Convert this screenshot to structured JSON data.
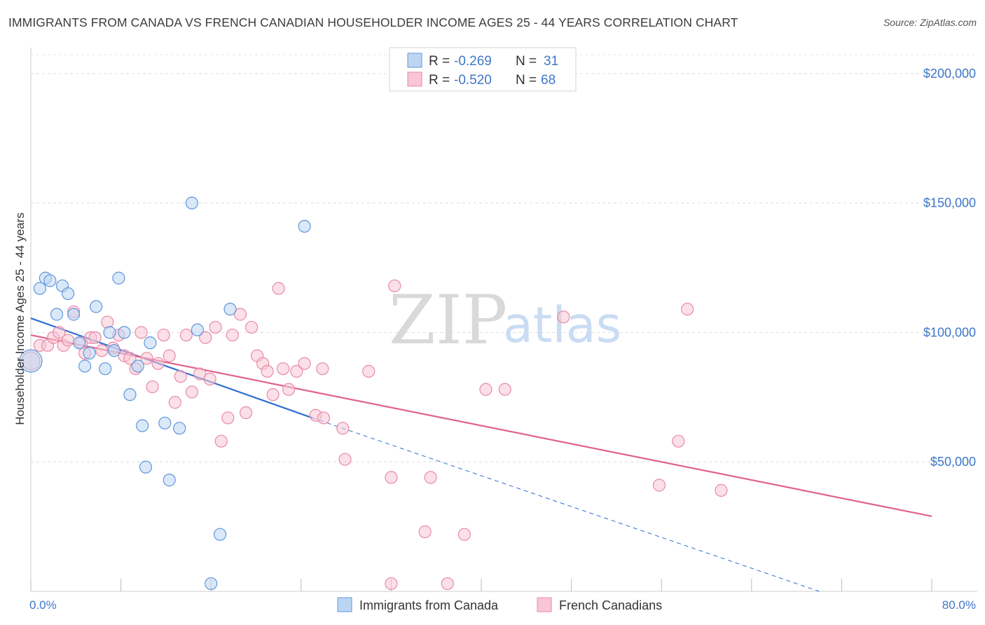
{
  "title": "IMMIGRANTS FROM CANADA VS FRENCH CANADIAN HOUSEHOLDER INCOME AGES 25 - 44 YEARS CORRELATION CHART",
  "source": "Source: ZipAtlas.com",
  "watermark": {
    "zip": "ZIP",
    "atlas": "atlas"
  },
  "legend": {
    "r_label": "R =",
    "n_label": "N =",
    "rows": [
      {
        "r": "-0.269",
        "n": "31",
        "color": "#a9c8ee"
      },
      {
        "r": "-0.520",
        "n": "68",
        "color": "#f5b6c9"
      }
    ]
  },
  "bottom_legend": [
    "Immigrants from Canada",
    "French Canadians"
  ],
  "chart_data": {
    "type": "scatter",
    "xlabel": "",
    "ylabel": "Householder Income Ages 25 - 44 years",
    "xlim": [
      0,
      80
    ],
    "ylim": [
      0,
      210000
    ],
    "x_tick_labels": [
      "0.0%",
      "80.0%"
    ],
    "y_ticks": [
      50000,
      100000,
      150000,
      200000
    ],
    "y_tick_labels": [
      "$50,000",
      "$100,000",
      "$150,000",
      "$200,000"
    ],
    "grid": true,
    "legend_position": "top-center",
    "series": [
      {
        "name": "Immigrants from Canada",
        "color": "#5f97dc",
        "fill": "#bcd5f3",
        "line_color": "#2f6fd0",
        "points": [
          [
            0.0,
            89000
          ],
          [
            0.8,
            117000
          ],
          [
            1.3,
            121000
          ],
          [
            1.7,
            120000
          ],
          [
            2.3,
            107000
          ],
          [
            2.8,
            118000
          ],
          [
            3.3,
            115000
          ],
          [
            3.8,
            107000
          ],
          [
            4.3,
            96000
          ],
          [
            4.8,
            87000
          ],
          [
            5.2,
            92000
          ],
          [
            5.8,
            110000
          ],
          [
            6.6,
            86000
          ],
          [
            7.0,
            100000
          ],
          [
            7.4,
            93000
          ],
          [
            7.8,
            121000
          ],
          [
            8.3,
            100000
          ],
          [
            8.8,
            76000
          ],
          [
            9.5,
            87000
          ],
          [
            9.9,
            64000
          ],
          [
            10.2,
            48000
          ],
          [
            10.6,
            96000
          ],
          [
            11.9,
            65000
          ],
          [
            12.3,
            43000
          ],
          [
            13.2,
            63000
          ],
          [
            14.3,
            150000
          ],
          [
            14.8,
            101000
          ],
          [
            16.0,
            3000
          ],
          [
            16.8,
            22000
          ],
          [
            17.7,
            109000
          ],
          [
            24.3,
            141000
          ]
        ],
        "trend_solid": [
          [
            0,
            105500
          ],
          [
            25,
            67000
          ]
        ],
        "trend_dashed": [
          [
            25,
            67000
          ],
          [
            70,
            0
          ]
        ]
      },
      {
        "name": "French Canadians",
        "color": "#e88aa6",
        "fill": "#f8c6d5",
        "line_color": "#e0628d",
        "points": [
          [
            0.0,
            89000
          ],
          [
            0.8,
            95000
          ],
          [
            1.5,
            95000
          ],
          [
            2.0,
            98000
          ],
          [
            2.5,
            100000
          ],
          [
            2.9,
            95000
          ],
          [
            3.3,
            97000
          ],
          [
            3.8,
            108000
          ],
          [
            4.5,
            96000
          ],
          [
            4.8,
            92000
          ],
          [
            5.3,
            98000
          ],
          [
            5.7,
            98000
          ],
          [
            6.3,
            93000
          ],
          [
            6.8,
            104000
          ],
          [
            7.3,
            94000
          ],
          [
            7.8,
            99000
          ],
          [
            8.3,
            91000
          ],
          [
            8.8,
            90000
          ],
          [
            9.3,
            86000
          ],
          [
            9.8,
            100000
          ],
          [
            10.3,
            90000
          ],
          [
            10.8,
            79000
          ],
          [
            11.3,
            88000
          ],
          [
            11.8,
            99000
          ],
          [
            12.3,
            91000
          ],
          [
            12.8,
            73000
          ],
          [
            13.3,
            83000
          ],
          [
            13.8,
            99000
          ],
          [
            14.3,
            77000
          ],
          [
            15.0,
            84000
          ],
          [
            15.5,
            98000
          ],
          [
            15.9,
            82000
          ],
          [
            16.4,
            102000
          ],
          [
            16.9,
            58000
          ],
          [
            17.5,
            67000
          ],
          [
            17.9,
            99000
          ],
          [
            18.6,
            107000
          ],
          [
            19.1,
            69000
          ],
          [
            19.6,
            102000
          ],
          [
            20.1,
            91000
          ],
          [
            20.6,
            88000
          ],
          [
            21.0,
            85000
          ],
          [
            21.5,
            76000
          ],
          [
            22.0,
            117000
          ],
          [
            22.4,
            86000
          ],
          [
            22.9,
            78000
          ],
          [
            23.6,
            85000
          ],
          [
            24.3,
            88000
          ],
          [
            25.3,
            68000
          ],
          [
            26.0,
            67000
          ],
          [
            25.9,
            86000
          ],
          [
            27.7,
            63000
          ],
          [
            27.9,
            51000
          ],
          [
            30.0,
            85000
          ],
          [
            32.0,
            44000
          ],
          [
            32.3,
            118000
          ],
          [
            32.0,
            3000
          ],
          [
            35.0,
            23000
          ],
          [
            35.5,
            44000
          ],
          [
            37.0,
            3000
          ],
          [
            38.5,
            22000
          ],
          [
            40.4,
            78000
          ],
          [
            42.1,
            78000
          ],
          [
            47.3,
            106000
          ],
          [
            55.8,
            41000
          ],
          [
            57.5,
            58000
          ],
          [
            58.3,
            109000
          ],
          [
            61.3,
            39000
          ]
        ],
        "trend_solid": [
          [
            0,
            99000
          ],
          [
            80,
            29000
          ]
        ]
      }
    ]
  }
}
